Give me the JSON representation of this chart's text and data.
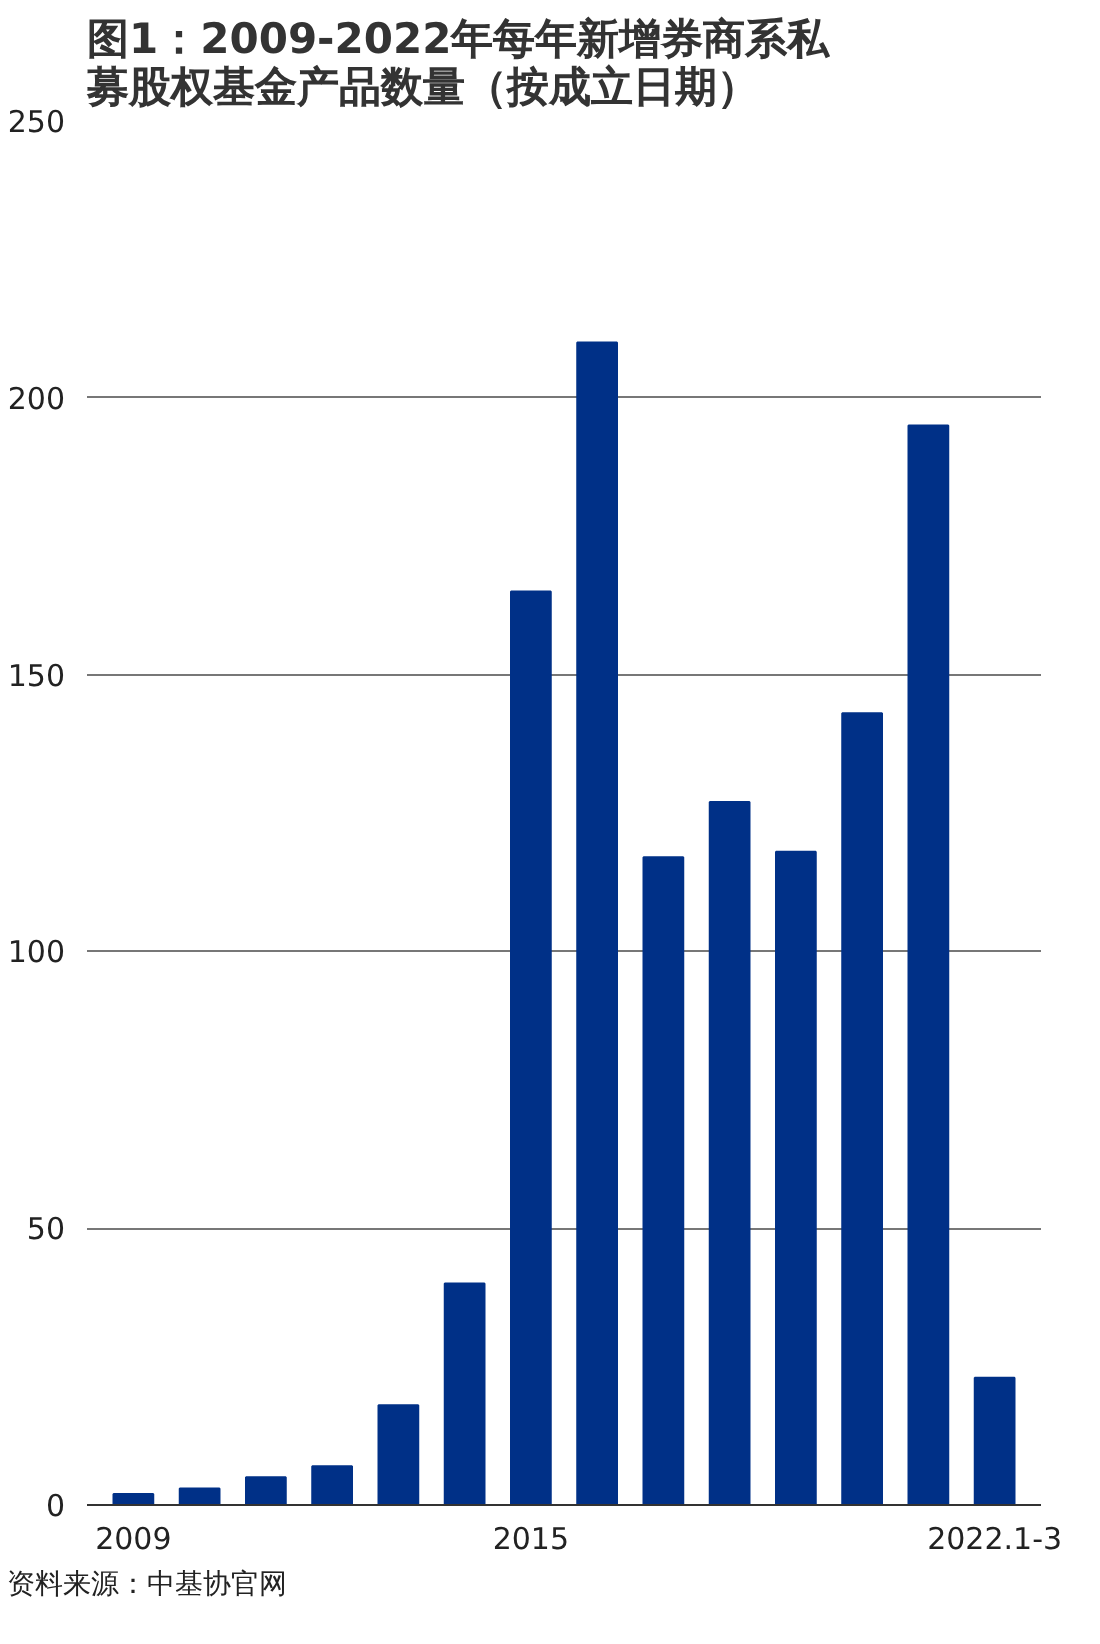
{
  "chart_data": {
    "type": "bar",
    "title": "图1：2009-2022年每年新增券商系私募股权基金产品数量（按成立日期）",
    "categories": [
      "2009",
      null,
      null,
      null,
      null,
      null,
      "2015",
      null,
      null,
      null,
      null,
      null,
      null,
      "2022.1-3"
    ],
    "values": [
      2,
      3,
      5,
      7,
      18,
      40,
      165,
      210,
      117,
      127,
      118,
      143,
      195,
      23
    ],
    "color": "#003087",
    "ylim": [
      0,
      250
    ],
    "yticks": [
      0,
      50,
      100,
      150,
      200,
      250
    ],
    "grid": "y",
    "annotations": [
      "资料来源：中基协官网"
    ]
  }
}
